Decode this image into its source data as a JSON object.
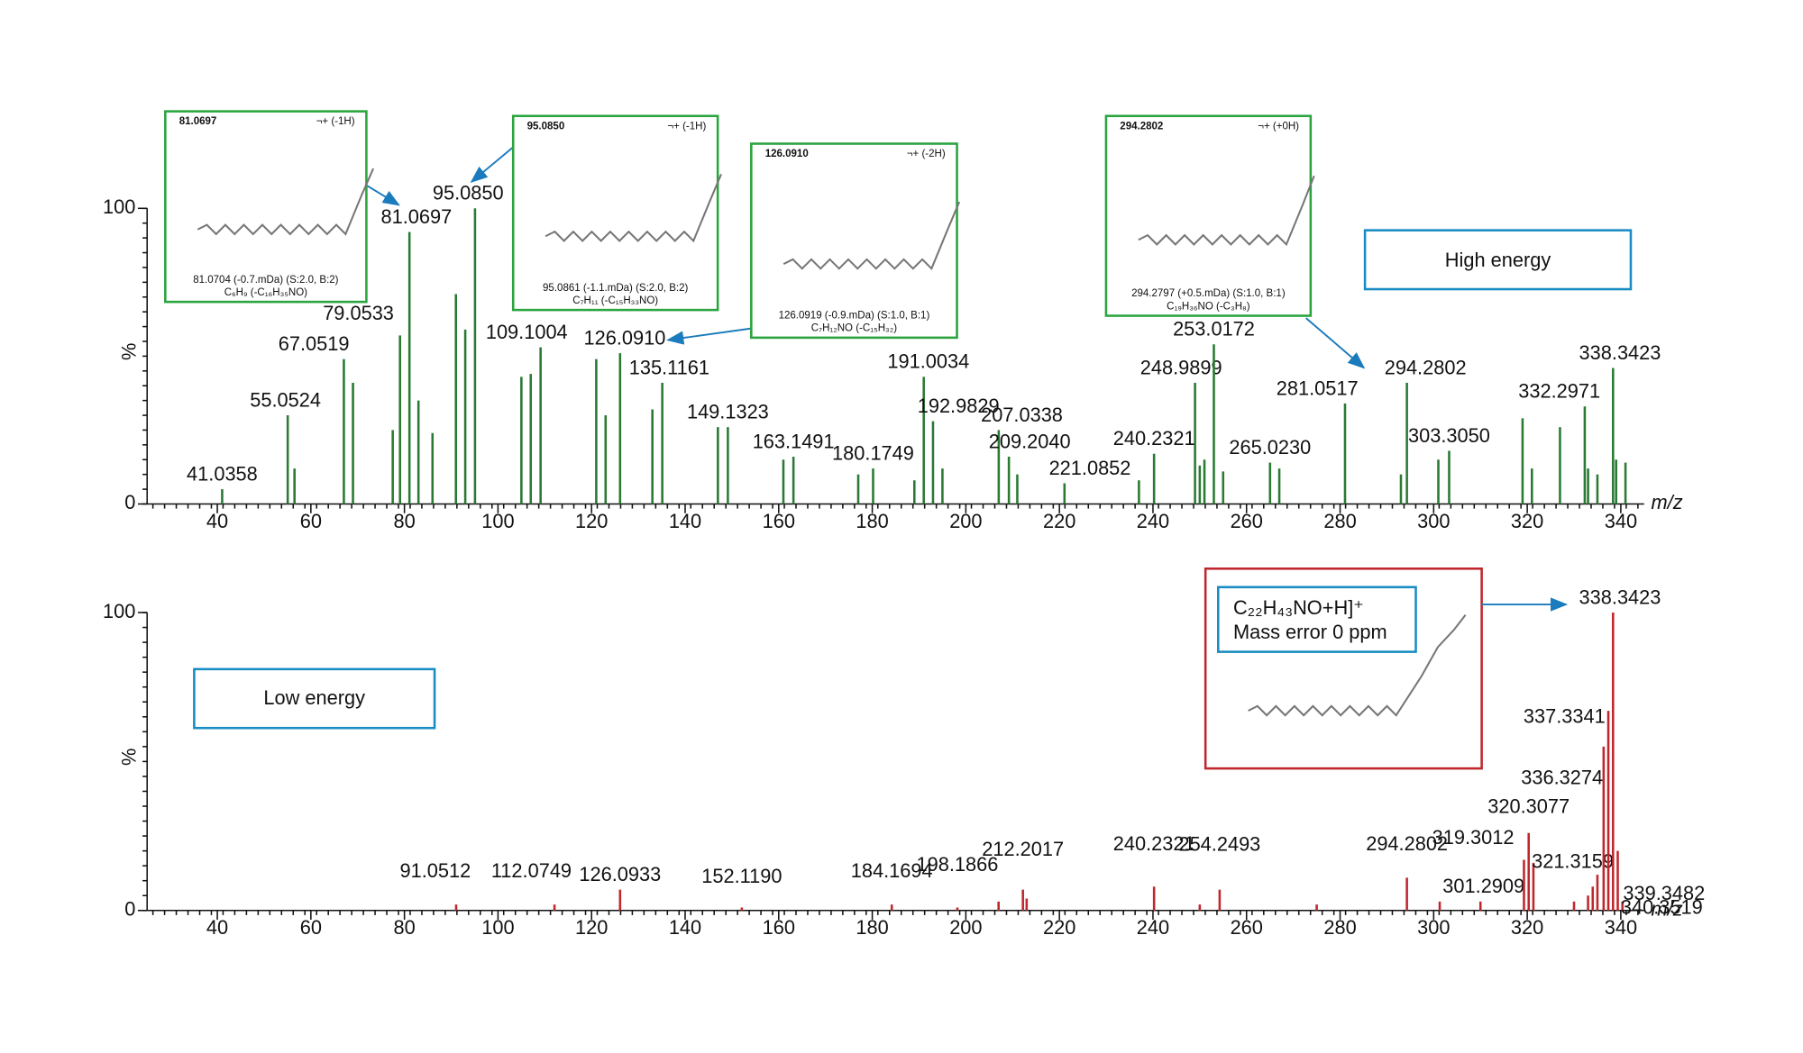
{
  "chart_data": [
    {
      "type": "bar",
      "label": "High energy",
      "color": "#2a7a34",
      "x": [
        41.0358,
        55.0524,
        67.0519,
        79.0533,
        81.0697,
        95.085,
        109.1004,
        126.091,
        135.1161,
        149.1323,
        163.1491,
        180.1749,
        191.0034,
        192.9829,
        207.0338,
        209.204,
        221.0852,
        240.2321,
        248.9899,
        253.0172,
        265.023,
        281.0517,
        294.2802,
        303.305,
        332.2971,
        338.3423,
        56.5,
        69,
        77.5,
        83,
        86,
        91,
        93,
        105,
        107,
        121,
        123,
        133,
        147,
        161,
        177,
        189,
        195,
        211,
        237,
        250,
        251,
        255,
        267,
        293,
        301,
        319,
        321,
        327,
        333,
        335,
        339,
        341
      ],
      "values": [
        5,
        30,
        49,
        57,
        92,
        100,
        53,
        51,
        41,
        26,
        16,
        12,
        43,
        28,
        25,
        16,
        7,
        17,
        41,
        54,
        14,
        34,
        41,
        18,
        33,
        46,
        12,
        41,
        25,
        35,
        24,
        71,
        59,
        43,
        44,
        49,
        30,
        32,
        26,
        15,
        10,
        8,
        12,
        10,
        8,
        13,
        15,
        11,
        12,
        10,
        15,
        29,
        12,
        26,
        12,
        10,
        15,
        14
      ],
      "peak_labels": [
        "41.0358",
        "55.0524",
        "67.0519",
        "79.0533",
        "81.0697",
        "95.0850",
        "109.1004",
        "126.0910",
        "135.1161",
        "149.1323",
        "163.1491",
        "180.1749",
        "191.0034",
        "192.9829",
        "207.0338",
        "209.2040",
        "221.0852",
        "240.2321",
        "248.9899",
        "253.0172",
        "265.0230",
        "281.0517",
        "294.2802",
        "303.3050",
        "332.2971",
        "338.3423",
        null,
        null,
        null,
        null,
        null,
        null,
        null,
        null,
        null,
        null,
        null,
        null,
        null,
        null,
        null,
        null,
        null,
        null,
        null,
        null,
        null,
        null,
        null,
        null,
        null,
        null,
        null,
        null,
        null,
        null,
        null,
        null
      ],
      "xlim": [
        25,
        345
      ],
      "ylim": [
        0,
        100
      ],
      "xticks": [
        40,
        60,
        80,
        100,
        120,
        140,
        160,
        180,
        200,
        220,
        240,
        260,
        280,
        300,
        320,
        340
      ],
      "yticks": [
        0,
        100
      ],
      "ylabel": "%",
      "xlabel": "m/z",
      "structure_boxes": [
        {
          "ion": "81.0697",
          "charge": "¬+ (-1H)",
          "match": "81.0704 (-0.7.mDa) (S:2.0, B:2)",
          "formula": "C₆H₉ (-C₁₆H₃₅NO)"
        },
        {
          "ion": "95.0850",
          "charge": "¬+ (-1H)",
          "match": "95.0861 (-1.1.mDa) (S:2.0, B:2)",
          "formula": "C₇H₁₁ (-C₁₅H₃₃NO)"
        },
        {
          "ion": "126.0910",
          "charge": "¬+ (-2H)",
          "match": "126.0919 (-0.9.mDa) (S:1.0, B:1)",
          "formula": "C₇H₁₂NO (-C₁₅H₃₂)"
        },
        {
          "ion": "294.2802",
          "charge": "¬+ (+0H)",
          "match": "294.2797 (+0.5.mDa) (S:1.0, B:1)",
          "formula": "C₁₉H₃₆NO (-C₃H₈)"
        }
      ]
    },
    {
      "type": "bar",
      "label": "Low energy",
      "color": "#c0272d",
      "x": [
        91.0512,
        112.0749,
        126.0933,
        152.119,
        184.1694,
        198.1866,
        212.2017,
        240.2321,
        254.2493,
        294.2802,
        301.2909,
        319.3012,
        320.3077,
        321.3159,
        336.3274,
        337.3341,
        338.3423,
        339.3482,
        340.3519,
        207,
        213,
        250,
        275,
        310,
        330,
        333,
        334,
        335
      ],
      "values": [
        2,
        2,
        7,
        1,
        2,
        1,
        7,
        8,
        7,
        11,
        3,
        17,
        26,
        16,
        55,
        67,
        100,
        20,
        3,
        3,
        4,
        2,
        2,
        3,
        3,
        5,
        8,
        12
      ],
      "peak_labels": [
        "91.0512",
        "112.0749",
        "126.0933",
        "152.1190",
        "184.1694",
        "198.1866",
        "212.2017",
        "240.2321",
        "254.2493",
        "294.2802",
        "301.2909",
        "319.3012",
        "320.3077",
        "321.3159",
        "336.3274",
        "337.3341",
        "338.3423",
        "339.3482",
        "340.3519",
        null,
        null,
        null,
        null,
        null,
        null,
        null,
        null,
        null
      ],
      "xlim": [
        25,
        345
      ],
      "ylim": [
        0,
        100
      ],
      "xticks": [
        40,
        60,
        80,
        100,
        120,
        140,
        160,
        180,
        200,
        220,
        240,
        260,
        280,
        300,
        320,
        340
      ],
      "yticks": [
        0,
        100
      ],
      "ylabel": "%",
      "xlabel": "m/z",
      "formula_box": {
        "formula": "C₂₂H₄₃NO+H]⁺",
        "error": "Mass error 0 ppm"
      }
    }
  ]
}
